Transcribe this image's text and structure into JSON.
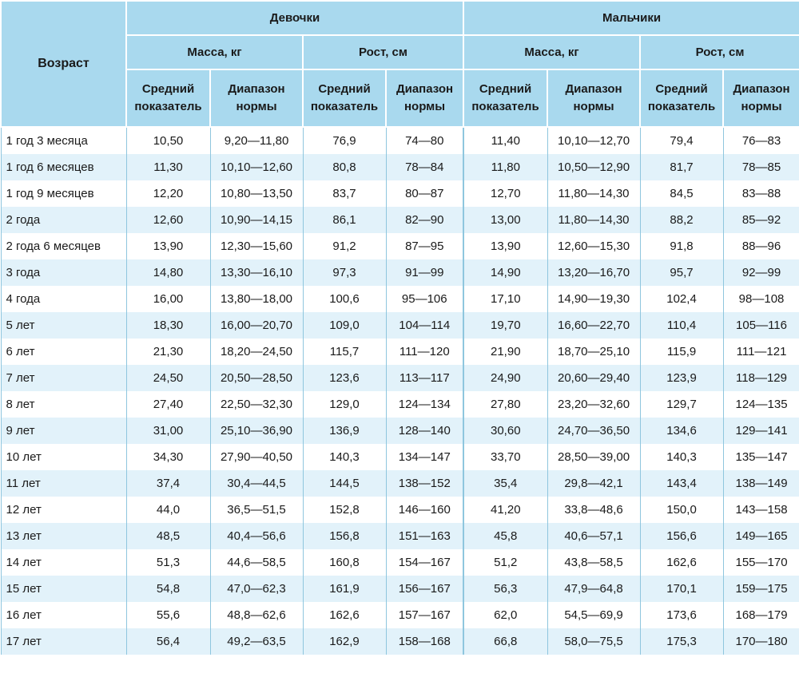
{
  "header": {
    "age": "Возраст",
    "girls": "Девочки",
    "boys": "Мальчики",
    "mass": "Масса, кг",
    "height": "Рост, см",
    "average_l1": "Средний",
    "average_l2": "показатель",
    "range_l1": "Диапазон",
    "range_l2": "нормы"
  },
  "rows": [
    [
      "1 год 3 месяца",
      "10,50",
      "9,20—11,80",
      "76,9",
      "74—80",
      "11,40",
      "10,10—12,70",
      "79,4",
      "76—83"
    ],
    [
      "1 год 6 месяцев",
      "11,30",
      "10,10—12,60",
      "80,8",
      "78—84",
      "11,80",
      "10,50—12,90",
      "81,7",
      "78—85"
    ],
    [
      "1 год 9 месяцев",
      "12,20",
      "10,80—13,50",
      "83,7",
      "80—87",
      "12,70",
      "11,80—14,30",
      "84,5",
      "83—88"
    ],
    [
      "2 года",
      "12,60",
      "10,90—14,15",
      "86,1",
      "82—90",
      "13,00",
      "11,80—14,30",
      "88,2",
      "85—92"
    ],
    [
      "2 года 6 месяцев",
      "13,90",
      "12,30—15,60",
      "91,2",
      "87—95",
      "13,90",
      "12,60—15,30",
      "91,8",
      "88—96"
    ],
    [
      "3 года",
      "14,80",
      "13,30—16,10",
      "97,3",
      "91—99",
      "14,90",
      "13,20—16,70",
      "95,7",
      "92—99"
    ],
    [
      "4 года",
      "16,00",
      "13,80—18,00",
      "100,6",
      "95—106",
      "17,10",
      "14,90—19,30",
      "102,4",
      "98—108"
    ],
    [
      "5 лет",
      "18,30",
      "16,00—20,70",
      "109,0",
      "104—114",
      "19,70",
      "16,60—22,70",
      "110,4",
      "105—116"
    ],
    [
      "6 лет",
      "21,30",
      "18,20—24,50",
      "115,7",
      "111—120",
      "21,90",
      "18,70—25,10",
      "115,9",
      "111—121"
    ],
    [
      "7 лет",
      "24,50",
      "20,50—28,50",
      "123,6",
      "113—117",
      "24,90",
      "20,60—29,40",
      "123,9",
      "118—129"
    ],
    [
      "8 лет",
      "27,40",
      "22,50—32,30",
      "129,0",
      "124—134",
      "27,80",
      "23,20—32,60",
      "129,7",
      "124—135"
    ],
    [
      "9 лет",
      "31,00",
      "25,10—36,90",
      "136,9",
      "128—140",
      "30,60",
      "24,70—36,50",
      "134,6",
      "129—141"
    ],
    [
      "10 лет",
      "34,30",
      "27,90—40,50",
      "140,3",
      "134—147",
      "33,70",
      "28,50—39,00",
      "140,3",
      "135—147"
    ],
    [
      "11 лет",
      "37,4",
      "30,4—44,5",
      "144,5",
      "138—152",
      "35,4",
      "29,8—42,1",
      "143,4",
      "138—149"
    ],
    [
      "12 лет",
      "44,0",
      "36,5—51,5",
      "152,8",
      "146—160",
      "41,20",
      "33,8—48,6",
      "150,0",
      "143—158"
    ],
    [
      "13 лет",
      "48,5",
      "40,4—56,6",
      "156,8",
      "151—163",
      "45,8",
      "40,6—57,1",
      "156,6",
      "149—165"
    ],
    [
      "14 лет",
      "51,3",
      "44,6—58,5",
      "160,8",
      "154—167",
      "51,2",
      "43,8—58,5",
      "162,6",
      "155—170"
    ],
    [
      "15 лет",
      "54,8",
      "47,0—62,3",
      "161,9",
      "156—167",
      "56,3",
      "47,9—64,8",
      "170,1",
      "159—175"
    ],
    [
      "16 лет",
      "55,6",
      "48,8—62,6",
      "162,6",
      "157—167",
      "62,0",
      "54,5—69,9",
      "173,6",
      "168—179"
    ],
    [
      "17 лет",
      "56,4",
      "49,2—63,5",
      "162,9",
      "158—168",
      "66,8",
      "58,0—75,5",
      "175,3",
      "170—180"
    ]
  ]
}
